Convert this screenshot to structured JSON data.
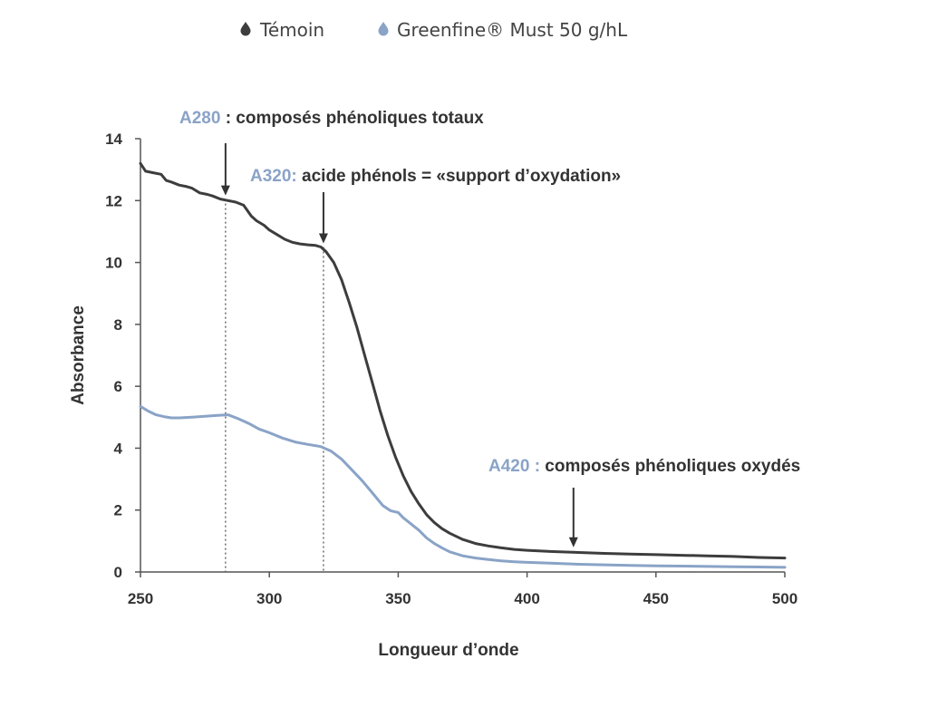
{
  "chart_data": {
    "type": "line",
    "title": "",
    "xlabel": "Longueur d’onde",
    "ylabel": "Absorbance",
    "xlim": [
      250,
      500
    ],
    "ylim": [
      0,
      14
    ],
    "xticks": [
      "250",
      "300",
      "350",
      "400",
      "450",
      "500"
    ],
    "yticks": [
      "0",
      "2",
      "4",
      "6",
      "8",
      "10",
      "12",
      "14"
    ],
    "grid": false,
    "legend_position": "top-center",
    "series": [
      {
        "name": "Témoin",
        "color": "#3d3d3d",
        "x": [
          250,
          252,
          255,
          258,
          260,
          262,
          265,
          268,
          270,
          273,
          276,
          278,
          281,
          284,
          287,
          290,
          293,
          295,
          298,
          300,
          303,
          306,
          309,
          312,
          315,
          318,
          320,
          322,
          325,
          328,
          331,
          334,
          337,
          340,
          343,
          346,
          349,
          352,
          355,
          358,
          361,
          364,
          367,
          370,
          375,
          380,
          385,
          390,
          395,
          400,
          410,
          420,
          430,
          440,
          450,
          460,
          470,
          480,
          490,
          500
        ],
        "values": [
          13.2,
          12.95,
          12.9,
          12.85,
          12.65,
          12.6,
          12.5,
          12.45,
          12.4,
          12.25,
          12.2,
          12.15,
          12.05,
          12.0,
          11.95,
          11.85,
          11.5,
          11.35,
          11.2,
          11.05,
          10.9,
          10.75,
          10.65,
          10.6,
          10.57,
          10.55,
          10.5,
          10.35,
          10.0,
          9.45,
          8.7,
          7.9,
          7.0,
          6.1,
          5.2,
          4.4,
          3.7,
          3.1,
          2.6,
          2.2,
          1.85,
          1.6,
          1.4,
          1.25,
          1.05,
          0.92,
          0.84,
          0.78,
          0.73,
          0.7,
          0.66,
          0.63,
          0.6,
          0.58,
          0.56,
          0.54,
          0.52,
          0.5,
          0.47,
          0.45
        ]
      },
      {
        "name": "Greenfine® Must 50 g/hL",
        "color": "#8aa3c7",
        "x": [
          250,
          253,
          256,
          259,
          262,
          265,
          270,
          275,
          280,
          284,
          288,
          292,
          296,
          300,
          305,
          310,
          315,
          320,
          324,
          328,
          332,
          336,
          340,
          344,
          347,
          350,
          352,
          355,
          358,
          361,
          364,
          367,
          370,
          375,
          380,
          385,
          390,
          395,
          400,
          410,
          420,
          430,
          440,
          450,
          460,
          470,
          480,
          490,
          500
        ],
        "values": [
          5.35,
          5.2,
          5.08,
          5.02,
          4.98,
          4.98,
          5.0,
          5.03,
          5.06,
          5.08,
          4.95,
          4.8,
          4.62,
          4.5,
          4.33,
          4.2,
          4.12,
          4.05,
          3.9,
          3.65,
          3.3,
          2.95,
          2.55,
          2.15,
          1.98,
          1.92,
          1.75,
          1.55,
          1.35,
          1.1,
          0.92,
          0.78,
          0.65,
          0.52,
          0.45,
          0.4,
          0.36,
          0.33,
          0.31,
          0.28,
          0.25,
          0.23,
          0.21,
          0.2,
          0.19,
          0.18,
          0.17,
          0.16,
          0.15
        ]
      }
    ],
    "reference_lines": [
      {
        "x": 283,
        "y_top": 12.05
      },
      {
        "x": 321,
        "y_top": 10.5
      }
    ],
    "annotations": [
      {
        "key": "A280",
        "label": "A280",
        "text": " : composés phénoliques totaux",
        "arrow_x": 283,
        "arrow_y": 12.05
      },
      {
        "key": "A320",
        "label": "A320:",
        "text": " acide phénols = «support d’oxydation»",
        "arrow_x": 321,
        "arrow_y": 10.5
      },
      {
        "key": "A420",
        "label": "A420 :",
        "text": " composés phénoliques oxydés",
        "arrow_x": 418,
        "arrow_y": 0.68
      }
    ]
  },
  "colors": {
    "accent": "#8aa3c7",
    "dark": "#3d3d3d",
    "axis": "#555555",
    "text": "#333333"
  }
}
